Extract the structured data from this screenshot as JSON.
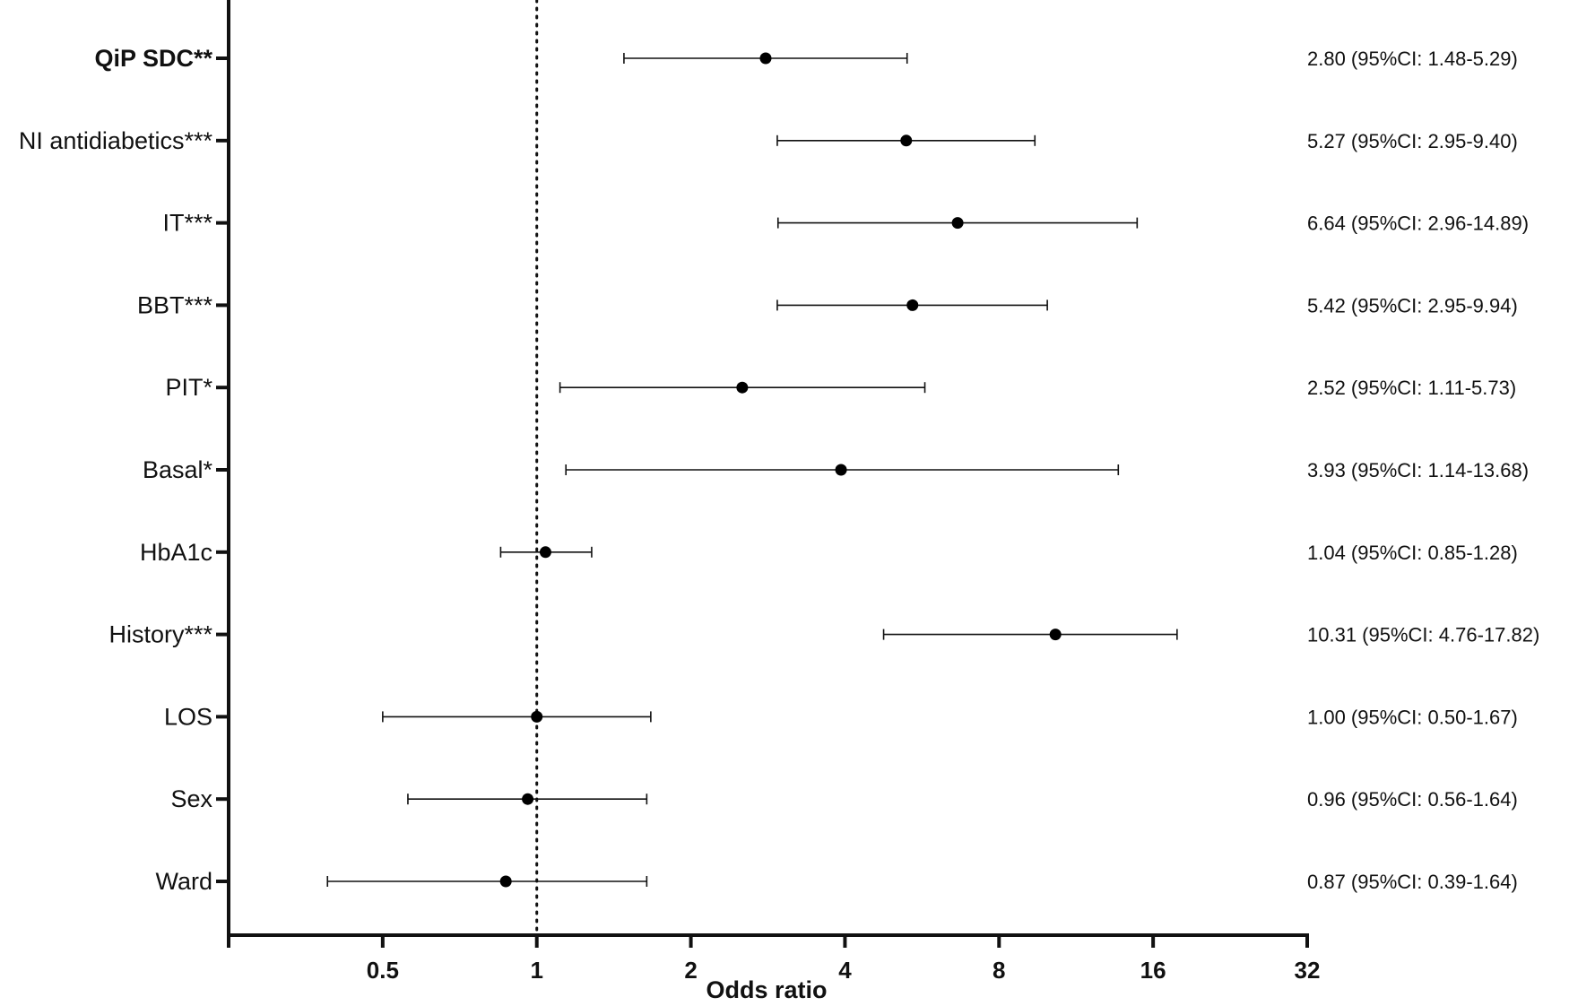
{
  "chart_data": {
    "type": "scatter",
    "subtype": "forest-plot",
    "title": "",
    "xlabel": "Odds ratio",
    "ylabel": "",
    "x_scale": "log2",
    "xlim": [
      0.25,
      32
    ],
    "x_ticks": [
      0.5,
      1,
      2,
      4,
      8,
      16,
      32
    ],
    "x_tick_labels": [
      "0.5",
      "1",
      "2",
      "4",
      "8",
      "16",
      "32"
    ],
    "reference_line": 1,
    "grid": false,
    "legend": "none",
    "marker_color": "#000000",
    "rows": [
      {
        "label": "QiP SDC**",
        "bold": true,
        "or": 2.8,
        "lower": 1.48,
        "upper": 5.29,
        "annotation": "2.80 (95%CI: 1.48-5.29)"
      },
      {
        "label": "NI antidiabetics***",
        "bold": false,
        "or": 5.27,
        "lower": 2.95,
        "upper": 9.4,
        "annotation": "5.27 (95%CI: 2.95-9.40)"
      },
      {
        "label": "IT***",
        "bold": false,
        "or": 6.64,
        "lower": 2.96,
        "upper": 14.89,
        "annotation": "6.64 (95%CI: 2.96-14.89)"
      },
      {
        "label": "BBT***",
        "bold": false,
        "or": 5.42,
        "lower": 2.95,
        "upper": 9.94,
        "annotation": "5.42 (95%CI: 2.95-9.94)"
      },
      {
        "label": "PIT*",
        "bold": false,
        "or": 2.52,
        "lower": 1.11,
        "upper": 5.73,
        "annotation": "2.52 (95%CI: 1.11-5.73)"
      },
      {
        "label": "Basal*",
        "bold": false,
        "or": 3.93,
        "lower": 1.14,
        "upper": 13.68,
        "annotation": "3.93 (95%CI: 1.14-13.68)"
      },
      {
        "label": "HbA1c",
        "bold": false,
        "or": 1.04,
        "lower": 0.85,
        "upper": 1.28,
        "annotation": "1.04 (95%CI: 0.85-1.28)"
      },
      {
        "label": "History***",
        "bold": false,
        "or": 10.31,
        "lower": 4.76,
        "upper": 17.82,
        "annotation": "10.31 (95%CI: 4.76-17.82)"
      },
      {
        "label": "LOS",
        "bold": false,
        "or": 1.0,
        "lower": 0.5,
        "upper": 1.67,
        "annotation": "1.00 (95%CI: 0.50-1.67)"
      },
      {
        "label": "Sex",
        "bold": false,
        "or": 0.96,
        "lower": 0.56,
        "upper": 1.64,
        "annotation": "0.96 (95%CI: 0.56-1.64)"
      },
      {
        "label": "Ward",
        "bold": false,
        "or": 0.87,
        "lower": 0.39,
        "upper": 1.64,
        "annotation": "0.87 (95%CI: 0.39-1.64)"
      }
    ]
  }
}
